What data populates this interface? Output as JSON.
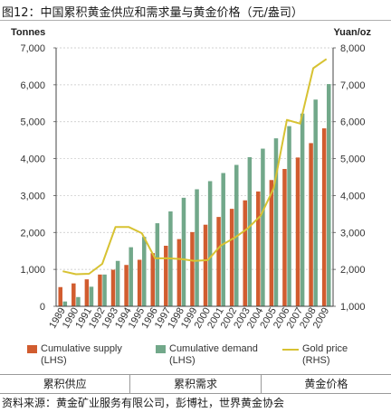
{
  "figure": {
    "title": "图12：中国累积黄金供应和需求量与黄金价格（元/盎司）",
    "source": "资料来源：黄金矿业服务有限公司，彭博社，世界黄金协会"
  },
  "table_labels": [
    "累积供应",
    "累积需求",
    "黄金价格"
  ],
  "colors": {
    "supply": "#d15c2f",
    "demand": "#72a88a",
    "gold": "#d7c232"
  },
  "chart_data": {
    "type": "bar",
    "left_axis": {
      "unit": "Tonnes",
      "ticks": [
        "0",
        "1,000",
        "2,000",
        "3,000",
        "4,000",
        "5,000",
        "6,000",
        "7,000"
      ],
      "ylim": [
        0,
        7000
      ]
    },
    "right_axis": {
      "unit": "Yuan/oz",
      "ticks": [
        "1,000",
        "2,000",
        "3,000",
        "4,000",
        "5,000",
        "6,000",
        "7,000",
        "8,000"
      ],
      "ylim": [
        1000,
        8000
      ]
    },
    "categories": [
      "1989",
      "1990",
      "1991",
      "1992",
      "1993",
      "1994",
      "1995",
      "1996",
      "1997",
      "1998",
      "1999",
      "2000",
      "2001",
      "2002",
      "2003",
      "2004",
      "2005",
      "2006",
      "2007",
      "2008",
      "2009"
    ],
    "series": [
      {
        "name": "Cumulative supply",
        "axis_note": "(LHS)",
        "kind": "bar",
        "values": [
          520,
          620,
          730,
          860,
          990,
          1120,
          1260,
          1440,
          1640,
          1820,
          2010,
          2210,
          2420,
          2640,
          2870,
          3110,
          3420,
          3720,
          4030,
          4420,
          4820
        ]
      },
      {
        "name": "Cumulative demand",
        "axis_note": "(LHS)",
        "kind": "bar",
        "values": [
          130,
          250,
          530,
          860,
          1230,
          1600,
          1880,
          2250,
          2570,
          2940,
          3170,
          3390,
          3610,
          3830,
          4040,
          4270,
          4550,
          4880,
          5220,
          5600,
          6020
        ]
      },
      {
        "name": "Gold price",
        "axis_note": "(RHS)",
        "kind": "line",
        "values": [
          1950,
          1870,
          1880,
          2150,
          3150,
          3150,
          2980,
          2300,
          2300,
          2280,
          2230,
          2250,
          2650,
          2850,
          3100,
          3450,
          4200,
          6050,
          5950,
          7450,
          7700
        ]
      }
    ]
  }
}
